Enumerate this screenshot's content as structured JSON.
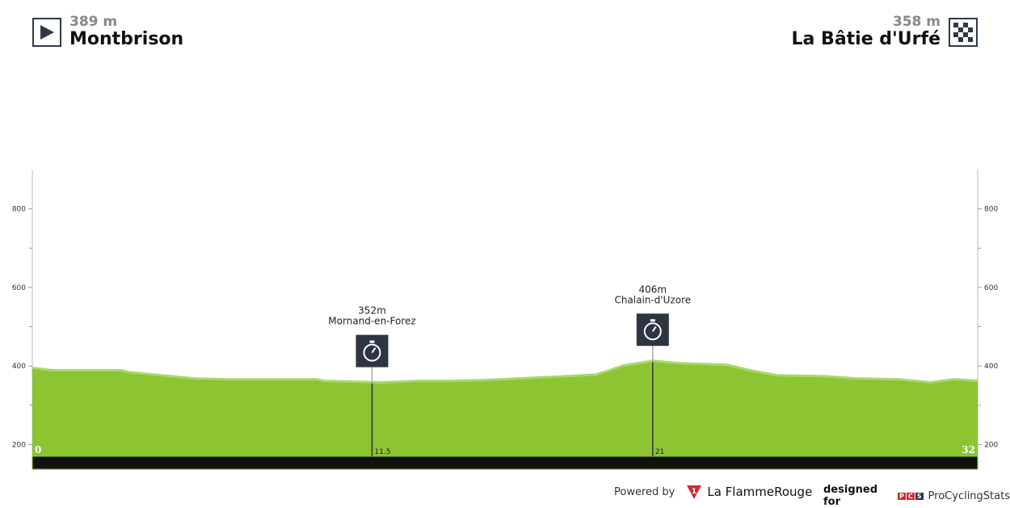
{
  "start": {
    "elevation": "389 m",
    "name": "Montbrison",
    "icon": "play-flag-icon"
  },
  "finish": {
    "elevation": "358 m",
    "name": "La Bâtie d'Urfé",
    "icon": "checkered-flag-icon"
  },
  "footer": {
    "powered_by": "Powered by",
    "brand1": "La FlammeRouge",
    "designed_for": "designed for",
    "brand2_logo": "PCS",
    "brand2": "ProCyclingStats"
  },
  "colors": {
    "profile": "#8cc432",
    "profile_light": "#a9d86a",
    "axis_bar": "#111111",
    "marker_box": "#2d3442"
  },
  "chart_data": {
    "type": "area",
    "title": "",
    "xlabel": "",
    "ylabel": "",
    "xlim": [
      0,
      32
    ],
    "ylim": [
      170,
      900
    ],
    "yticks": [
      200,
      400,
      600,
      800
    ],
    "yminor": [
      300,
      500,
      700
    ],
    "x_labels": [
      "0",
      "11.5",
      "21",
      "32"
    ],
    "grid": false,
    "points": [
      [
        0,
        392
      ],
      [
        0.7,
        386
      ],
      [
        3,
        386
      ],
      [
        3.3,
        381
      ],
      [
        4.4,
        373
      ],
      [
        5.5,
        365
      ],
      [
        6.6,
        363
      ],
      [
        9.6,
        363
      ],
      [
        9.9,
        359
      ],
      [
        11.9,
        355
      ],
      [
        13.1,
        359
      ],
      [
        14.2,
        359
      ],
      [
        15.3,
        361
      ],
      [
        18.1,
        371
      ],
      [
        19.1,
        375
      ],
      [
        20,
        398
      ],
      [
        21,
        410
      ],
      [
        21.9,
        404
      ],
      [
        23.5,
        400
      ],
      [
        24.3,
        386
      ],
      [
        25.2,
        373
      ],
      [
        26.8,
        371
      ],
      [
        27.9,
        365
      ],
      [
        29.3,
        363
      ],
      [
        30.4,
        355
      ],
      [
        31.2,
        363
      ],
      [
        32,
        359
      ]
    ],
    "markers": [
      {
        "km": 11.5,
        "elevation": "352m",
        "name": "Mornand-en-Forez",
        "icon": "stopwatch-icon",
        "km_label": "11.5"
      },
      {
        "km": 21,
        "elevation": "406m",
        "name": "Chalain-d'Uzore",
        "icon": "stopwatch-icon",
        "km_label": "21"
      }
    ]
  }
}
